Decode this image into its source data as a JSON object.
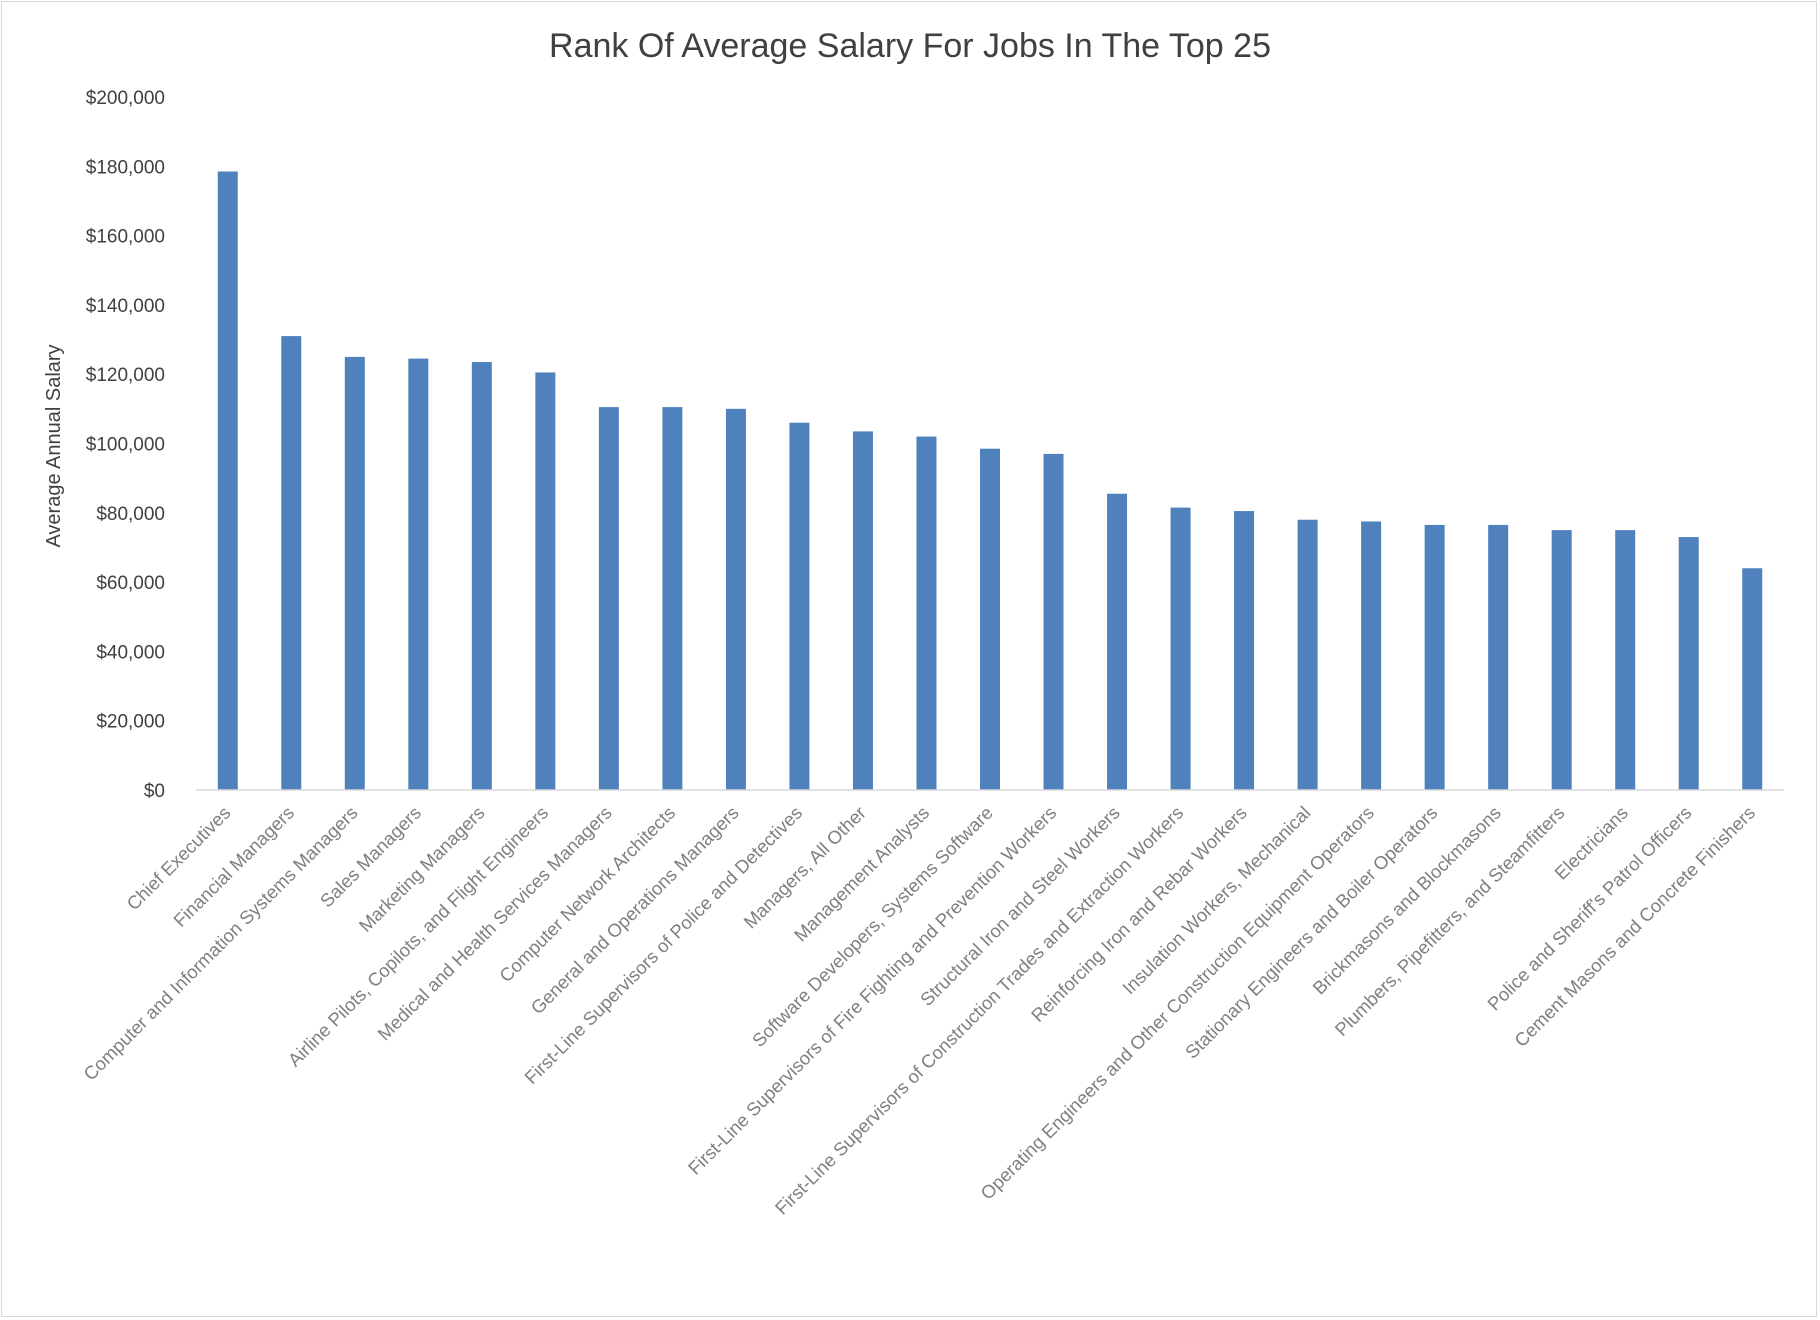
{
  "chart_data": {
    "type": "bar",
    "title": "Rank Of Average Salary For Jobs In The Top 25",
    "xlabel": "",
    "ylabel": "Average Annual Salary",
    "ylim": [
      0,
      200000
    ],
    "ytick_step": 20000,
    "yticks": [
      "$0",
      "$20,000",
      "$40,000",
      "$60,000",
      "$80,000",
      "$100,000",
      "$120,000",
      "$140,000",
      "$160,000",
      "$180,000",
      "$200,000"
    ],
    "grid": false,
    "legend": "none",
    "colors": {
      "bar": "#4f81bd",
      "axis": "#d9d9d9",
      "title": "#404040",
      "tick_label": "#7f7f7f"
    },
    "categories": [
      "Chief Executives",
      "Financial Managers",
      "Computer and Information Systems Managers",
      "Sales Managers",
      "Marketing Managers",
      "Airline Pilots, Copilots, and Flight Engineers",
      "Medical and Health Services Managers",
      "Computer Network Architects",
      "General and Operations Managers",
      "First-Line Supervisors of Police and Detectives",
      "Managers, All Other",
      "Management Analysts",
      "Software Developers, Systems Software",
      "First-Line Supervisors of Fire Fighting and Prevention Workers",
      "Structural Iron and Steel Workers",
      "First-Line Supervisors of Construction Trades and Extraction Workers",
      "Reinforcing Iron and Rebar Workers",
      "Insulation Workers, Mechanical",
      "Operating Engineers and Other Construction Equipment Operators",
      "Stationary Engineers and Boiler Operators",
      "Brickmasons and Blockmasons",
      "Plumbers, Pipefitters, and Steamfitters",
      "Electricians",
      "Police and Sheriff's Patrol Officers",
      "Cement Masons and Concrete Finishers"
    ],
    "values": [
      178500,
      131000,
      125000,
      124500,
      123500,
      120500,
      110500,
      110500,
      110000,
      106000,
      103500,
      102000,
      98500,
      97000,
      85500,
      81500,
      80500,
      78000,
      77500,
      76500,
      76500,
      75000,
      75000,
      73000,
      64000
    ]
  }
}
